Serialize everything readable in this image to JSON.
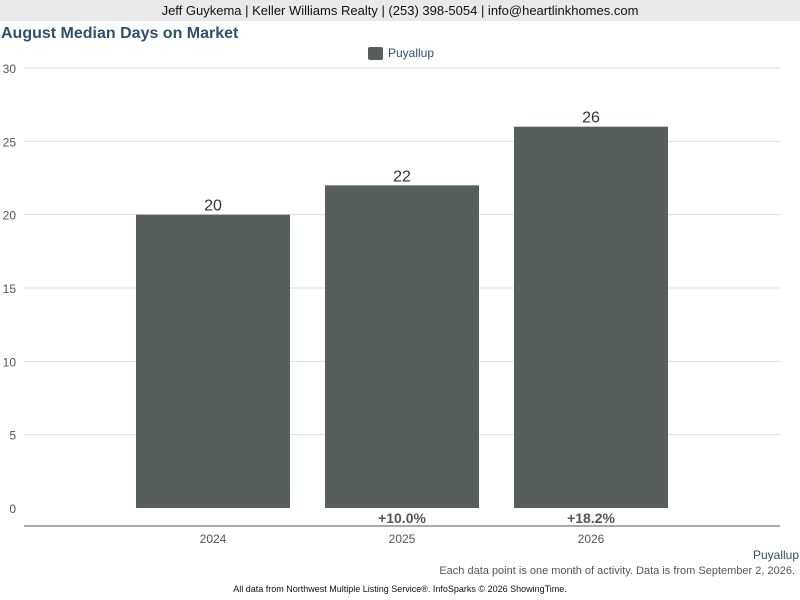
{
  "header": {
    "contact": "Jeff Guykema | Keller Williams Realty | (253) 398-5054 | info@heartlinkhomes.com"
  },
  "chart_data": {
    "type": "bar",
    "title": "August Median Days on Market",
    "categories": [
      "2024",
      "2025",
      "2026"
    ],
    "series": [
      {
        "name": "Puyallup",
        "values": [
          20,
          22,
          26
        ],
        "color": "#575f5c"
      }
    ],
    "data_labels": [
      "20",
      "22",
      "26"
    ],
    "change_labels": [
      "",
      "+10.0%",
      "+18.2%"
    ],
    "ylim": [
      0,
      30
    ],
    "yticks": [
      0,
      5,
      10,
      15,
      20,
      25,
      30
    ],
    "grid": true,
    "legend_position": "top-center"
  },
  "footer": {
    "series_label": "Puyallup",
    "note": "Each data point is one month of activity. Data is from September 2, 2026.",
    "source": "All data from Northwest Multiple Listing Service®. InfoSparks © 2026 ShowingTime."
  }
}
